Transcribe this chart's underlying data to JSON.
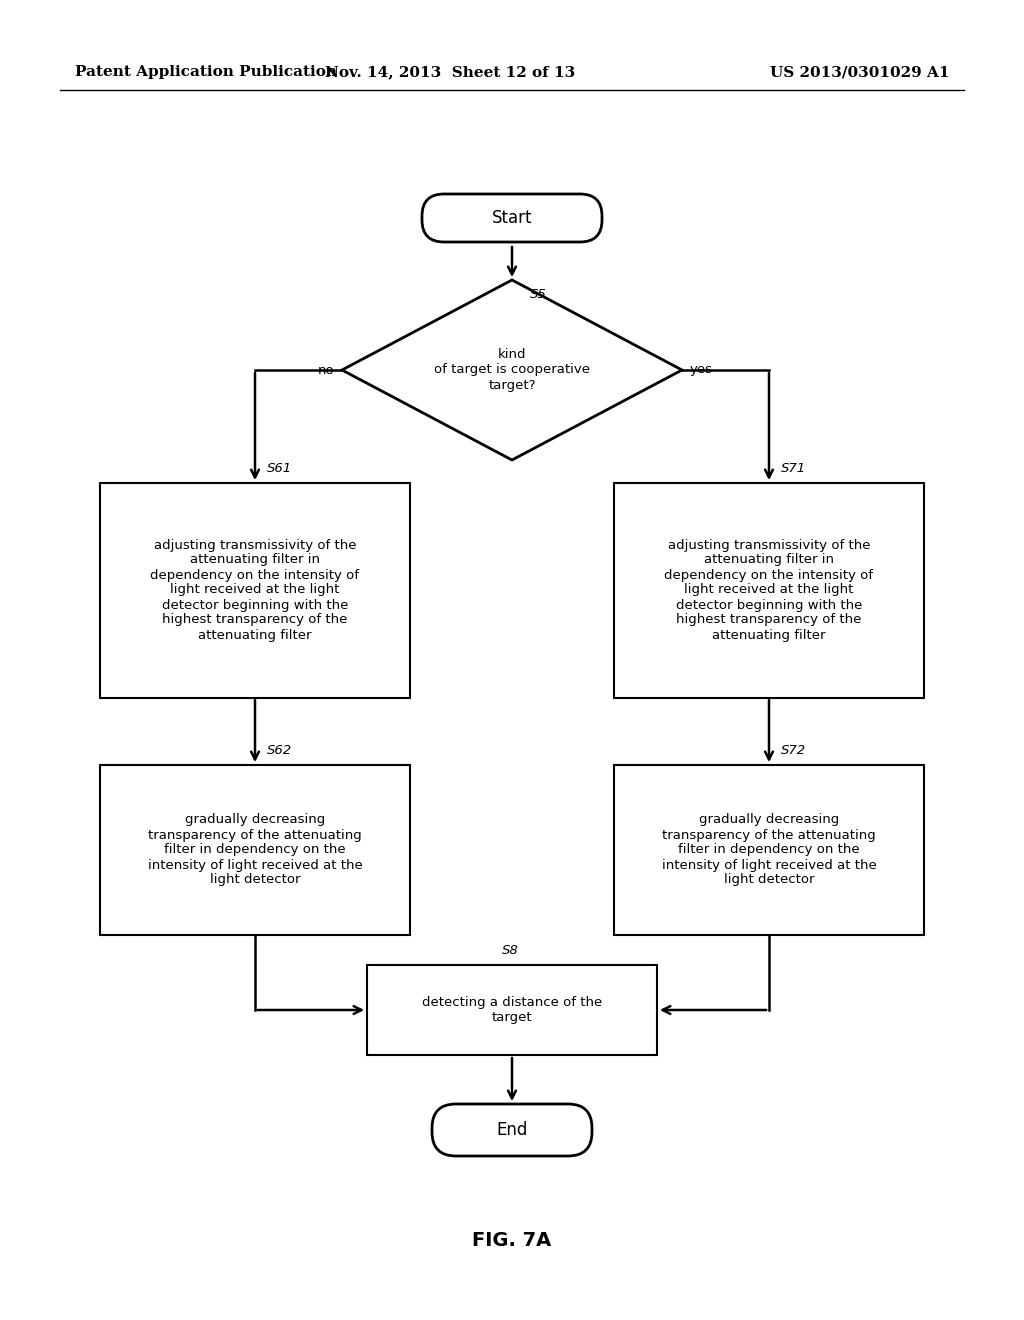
{
  "bg_color": "#ffffff",
  "header_left": "Patent Application Publication",
  "header_mid": "Nov. 14, 2013  Sheet 12 of 13",
  "header_right": "US 2013/0301029 A1",
  "fig_label": "FIG. 7A",
  "start_label": "Start",
  "end_label": "End",
  "diamond_label": "kind\nof target is cooperative\ntarget?",
  "diamond_step": "S5",
  "diamond_no": "no",
  "diamond_yes": "yes",
  "box_s61_label": "adjusting transmissivity of the\nattenuating filter in\ndependency on the intensity of\nlight received at the light\ndetector beginning with the\nhighest transparency of the\nattenuating filter",
  "box_s61_step": "S61",
  "box_s71_label": "adjusting transmissivity of the\nattenuating filter in\ndependency on the intensity of\nlight received at the light\ndetector beginning with the\nhighest transparency of the\nattenuating filter",
  "box_s71_step": "S71",
  "box_s62_label": "gradually decreasing\ntransparency of the attenuating\nfilter in dependency on the\nintensity of light received at the\nlight detector",
  "box_s62_step": "S62",
  "box_s72_label": "gradually decreasing\ntransparency of the attenuating\nfilter in dependency on the\nintensity of light received at the\nlight detector",
  "box_s72_step": "S72",
  "box_s8_label": "detecting a distance of the\ntarget",
  "box_s8_step": "S8",
  "line_color": "#000000",
  "text_color": "#000000",
  "font_size_header": 11,
  "font_size_body": 9.5,
  "font_size_step": 9.5,
  "font_size_terminal": 12
}
